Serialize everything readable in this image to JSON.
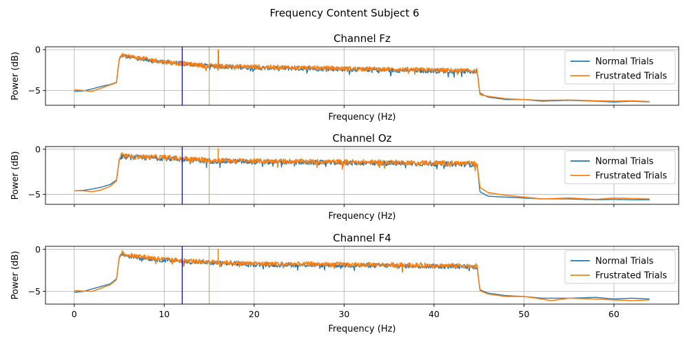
{
  "figure_title": "Frequency Content Subject 6",
  "colors": {
    "normal": "#1f77b4",
    "frustrated": "#ff7f0e",
    "marker_blue": "#0000cc",
    "marker_orange": "#ffa500",
    "grid": "#b0b0b0"
  },
  "chart_data": [
    {
      "type": "line",
      "title": "Channel Fz",
      "xlabel": "Frequency (Hz)",
      "ylabel": "Power (dB)",
      "xlim": [
        -3.2,
        67.2
      ],
      "ylim": [
        -6.8,
        0.35
      ],
      "xticks": [
        0,
        10,
        20,
        30,
        40,
        50,
        60
      ],
      "yticks": [
        0,
        -5
      ],
      "ytick_labels": [
        "0",
        "−5"
      ],
      "grid": true,
      "legend": [
        "Normal Trials",
        "Frustrated Trials"
      ],
      "legend_location": "top-right",
      "vlines": [
        {
          "x": 12,
          "color": "blue"
        },
        {
          "x": 15,
          "color": "orange"
        }
      ],
      "series": [
        {
          "name": "Normal Trials",
          "points": [
            [
              0,
              -5.1
            ],
            [
              1,
              -5.05
            ],
            [
              2,
              -4.8
            ],
            [
              3,
              -4.5
            ],
            [
              4,
              -4.25
            ],
            [
              4.7,
              -4.0
            ],
            [
              5,
              -1.2
            ],
            [
              5.3,
              -0.7
            ],
            [
              6,
              -0.9
            ],
            [
              10,
              -1.5
            ],
            [
              15,
              -2.0
            ],
            [
              20,
              -2.2
            ],
            [
              30,
              -2.4
            ],
            [
              40,
              -2.6
            ],
            [
              44.8,
              -2.7
            ],
            [
              45.1,
              -5.3
            ],
            [
              46,
              -5.8
            ],
            [
              48,
              -6.1
            ],
            [
              50,
              -6.1
            ],
            [
              52,
              -6.3
            ],
            [
              55,
              -6.2
            ],
            [
              58,
              -6.3
            ],
            [
              60,
              -6.4
            ],
            [
              62,
              -6.3
            ],
            [
              64,
              -6.4
            ]
          ]
        },
        {
          "name": "Frustrated Trials",
          "points": [
            [
              0,
              -4.9
            ],
            [
              1,
              -5.0
            ],
            [
              2,
              -5.1
            ],
            [
              3,
              -4.7
            ],
            [
              4,
              -4.3
            ],
            [
              4.7,
              -4.05
            ],
            [
              5,
              -1.1
            ],
            [
              5.3,
              -0.5
            ],
            [
              6,
              -0.8
            ],
            [
              10,
              -1.5
            ],
            [
              15,
              -2.0
            ],
            [
              20,
              -2.1
            ],
            [
              30,
              -2.3
            ],
            [
              40,
              -2.5
            ],
            [
              44.8,
              -2.6
            ],
            [
              45.1,
              -5.5
            ],
            [
              46,
              -5.7
            ],
            [
              48,
              -6.0
            ],
            [
              50,
              -6.1
            ],
            [
              52,
              -6.2
            ],
            [
              55,
              -6.15
            ],
            [
              58,
              -6.25
            ],
            [
              60,
              -6.3
            ],
            [
              62,
              -6.25
            ],
            [
              64,
              -6.35
            ]
          ]
        }
      ],
      "spikes": [
        {
          "x": 16,
          "y": 0.0
        },
        {
          "x": 16.05,
          "y": 0.0
        }
      ]
    },
    {
      "type": "line",
      "title": "Channel Oz",
      "xlabel": "Frequency (Hz)",
      "ylabel": "Power (dB)",
      "xlim": [
        -3.2,
        67.2
      ],
      "ylim": [
        -6.1,
        0.3
      ],
      "xticks": [
        0,
        10,
        20,
        30,
        40,
        50,
        60
      ],
      "yticks": [
        0,
        -5
      ],
      "ytick_labels": [
        "0",
        "−5"
      ],
      "grid": true,
      "legend": [
        "Normal Trials",
        "Frustrated Trials"
      ],
      "legend_location": "top-right",
      "vlines": [
        {
          "x": 12,
          "color": "blue"
        },
        {
          "x": 15,
          "color": "orange"
        }
      ],
      "series": [
        {
          "name": "Normal Trials",
          "points": [
            [
              0,
              -4.6
            ],
            [
              1,
              -4.55
            ],
            [
              2,
              -4.4
            ],
            [
              3,
              -4.2
            ],
            [
              4,
              -3.9
            ],
            [
              4.7,
              -3.4
            ],
            [
              5,
              -1.2
            ],
            [
              5.3,
              -0.8
            ],
            [
              6,
              -0.9
            ],
            [
              10,
              -1.0
            ],
            [
              15,
              -1.3
            ],
            [
              20,
              -1.4
            ],
            [
              30,
              -1.5
            ],
            [
              40,
              -1.6
            ],
            [
              44.8,
              -1.7
            ],
            [
              45.1,
              -4.7
            ],
            [
              46,
              -5.2
            ],
            [
              48,
              -5.3
            ],
            [
              50,
              -5.4
            ],
            [
              52,
              -5.5
            ],
            [
              55,
              -5.5
            ],
            [
              58,
              -5.6
            ],
            [
              60,
              -5.55
            ],
            [
              62,
              -5.6
            ],
            [
              64,
              -5.6
            ]
          ]
        },
        {
          "name": "Frustrated Trials",
          "points": [
            [
              0,
              -4.6
            ],
            [
              1,
              -4.6
            ],
            [
              2,
              -4.7
            ],
            [
              3,
              -4.5
            ],
            [
              4,
              -4.1
            ],
            [
              4.7,
              -3.5
            ],
            [
              5,
              -1.1
            ],
            [
              5.3,
              -0.6
            ],
            [
              6,
              -0.8
            ],
            [
              10,
              -0.9
            ],
            [
              15,
              -1.2
            ],
            [
              20,
              -1.3
            ],
            [
              30,
              -1.4
            ],
            [
              40,
              -1.5
            ],
            [
              44.8,
              -1.6
            ],
            [
              45.1,
              -4.2
            ],
            [
              46,
              -4.8
            ],
            [
              48,
              -5.1
            ],
            [
              50,
              -5.3
            ],
            [
              52,
              -5.5
            ],
            [
              55,
              -5.4
            ],
            [
              58,
              -5.55
            ],
            [
              60,
              -5.4
            ],
            [
              62,
              -5.45
            ],
            [
              64,
              -5.5
            ]
          ]
        }
      ],
      "spikes": [
        {
          "x": 16,
          "y": 0.1
        }
      ]
    },
    {
      "type": "line",
      "title": "Channel F4",
      "xlabel": "Frequency (Hz)",
      "ylabel": "Power (dB)",
      "xlim": [
        -3.2,
        67.2
      ],
      "ylim": [
        -6.5,
        0.35
      ],
      "xticks": [
        0,
        10,
        20,
        30,
        40,
        50,
        60
      ],
      "yticks": [
        0,
        -5
      ],
      "ytick_labels": [
        "0",
        "−5"
      ],
      "grid": true,
      "legend": [
        "Normal Trials",
        "Frustrated Trials"
      ],
      "legend_location": "top-right",
      "vlines": [
        {
          "x": 12,
          "color": "blue"
        },
        {
          "x": 15,
          "color": "orange"
        }
      ],
      "series": [
        {
          "name": "Normal Trials",
          "points": [
            [
              0,
              -5.1
            ],
            [
              1,
              -5.0
            ],
            [
              2,
              -4.7
            ],
            [
              3,
              -4.4
            ],
            [
              4,
              -4.1
            ],
            [
              4.7,
              -3.5
            ],
            [
              5,
              -1.0
            ],
            [
              5.3,
              -0.6
            ],
            [
              6,
              -0.8
            ],
            [
              10,
              -1.3
            ],
            [
              15,
              -1.6
            ],
            [
              20,
              -1.8
            ],
            [
              30,
              -1.9
            ],
            [
              40,
              -2.0
            ],
            [
              44.8,
              -2.1
            ],
            [
              45.1,
              -4.8
            ],
            [
              46,
              -5.2
            ],
            [
              48,
              -5.5
            ],
            [
              50,
              -5.6
            ],
            [
              52,
              -5.8
            ],
            [
              55,
              -5.8
            ],
            [
              58,
              -5.7
            ],
            [
              60,
              -5.9
            ],
            [
              62,
              -5.8
            ],
            [
              64,
              -5.9
            ]
          ]
        },
        {
          "name": "Frustrated Trials",
          "points": [
            [
              0,
              -4.9
            ],
            [
              1,
              -4.95
            ],
            [
              2,
              -5.0
            ],
            [
              3,
              -4.6
            ],
            [
              4,
              -4.2
            ],
            [
              4.7,
              -3.6
            ],
            [
              5,
              -0.9
            ],
            [
              5.3,
              -0.4
            ],
            [
              6,
              -0.7
            ],
            [
              10,
              -1.2
            ],
            [
              15,
              -1.5
            ],
            [
              20,
              -1.7
            ],
            [
              30,
              -1.8
            ],
            [
              40,
              -1.9
            ],
            [
              44.8,
              -2.0
            ],
            [
              45.1,
              -4.9
            ],
            [
              46,
              -5.3
            ],
            [
              48,
              -5.6
            ],
            [
              50,
              -5.6
            ],
            [
              52,
              -5.9
            ],
            [
              53,
              -6.1
            ],
            [
              55,
              -5.8
            ],
            [
              58,
              -5.9
            ],
            [
              60,
              -6.0
            ],
            [
              62,
              -6.1
            ],
            [
              64,
              -6.0
            ]
          ]
        }
      ],
      "spikes": [
        {
          "x": 16,
          "y": 0.05
        }
      ]
    }
  ]
}
